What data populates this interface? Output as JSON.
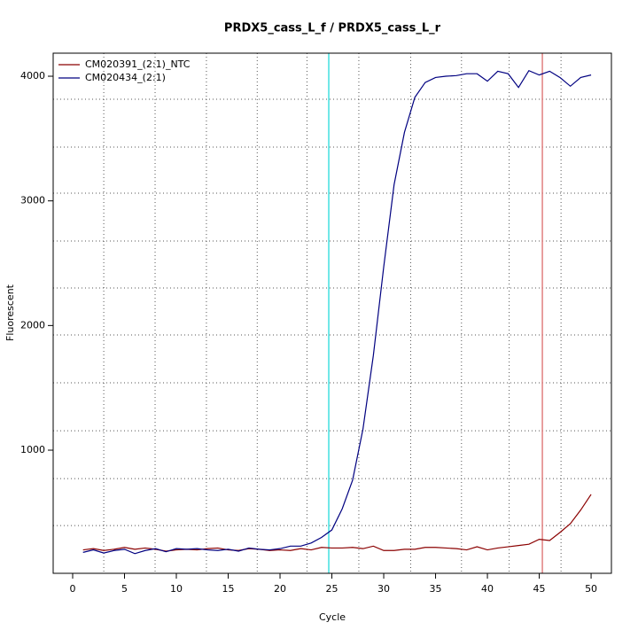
{
  "chart_data": {
    "type": "line",
    "title": "PRDX5_cass_L_f / PRDX5_cass_L_r",
    "xlabel": "Cycle",
    "ylabel": "Fluorescent",
    "x": [
      1,
      2,
      3,
      4,
      5,
      6,
      7,
      8,
      9,
      10,
      11,
      12,
      13,
      14,
      15,
      16,
      17,
      18,
      19,
      20,
      21,
      22,
      23,
      24,
      25,
      26,
      27,
      28,
      29,
      30,
      31,
      32,
      33,
      34,
      35,
      36,
      37,
      38,
      39,
      40,
      41,
      42,
      43,
      44,
      45,
      46,
      47,
      48,
      49,
      50
    ],
    "series": [
      {
        "name": "CM020391_(2:1)_NTC",
        "color": "#8b0000",
        "values": [
          200,
          210,
          195,
          205,
          220,
          205,
          215,
          205,
          190,
          200,
          205,
          200,
          210,
          215,
          200,
          195,
          210,
          205,
          195,
          200,
          195,
          210,
          200,
          220,
          215,
          215,
          220,
          210,
          230,
          195,
          195,
          205,
          205,
          220,
          220,
          215,
          210,
          200,
          225,
          200,
          215,
          225,
          235,
          245,
          285,
          275,
          340,
          410,
          520,
          645
        ]
      },
      {
        "name": "CM020434_(2:1)",
        "color": "#000080",
        "values": [
          180,
          200,
          175,
          195,
          205,
          170,
          195,
          210,
          185,
          210,
          205,
          210,
          200,
          195,
          205,
          190,
          215,
          205,
          200,
          210,
          230,
          230,
          255,
          300,
          360,
          530,
          760,
          1170,
          1760,
          2470,
          3130,
          3550,
          3830,
          3950,
          3990,
          4000,
          4005,
          4020,
          4020,
          3960,
          4040,
          4020,
          3910,
          4045,
          4010,
          4040,
          3990,
          3920,
          3990,
          4010
        ]
      }
    ],
    "xlim": [
      -1.88,
      51.96
    ],
    "ylim": [
      12,
      4185
    ],
    "xticks": [
      0,
      5,
      10,
      15,
      20,
      25,
      30,
      35,
      40,
      45,
      50
    ],
    "yticks": [
      1000,
      2000,
      3000,
      4000
    ],
    "xgrid": [
      3,
      7.95,
      12.9,
      17.8,
      22.6,
      27.6,
      32.6,
      37.5,
      42.1,
      47.1
    ],
    "ygrid": [
      395,
      772,
      1156,
      1540,
      1924,
      2301,
      2678,
      3062,
      3431,
      3815
    ],
    "vlines": [
      {
        "value": 24.7,
        "color": "#40e0e0"
      },
      {
        "value": 45.3,
        "color": "#e08080"
      }
    ],
    "legend": "top-left"
  }
}
